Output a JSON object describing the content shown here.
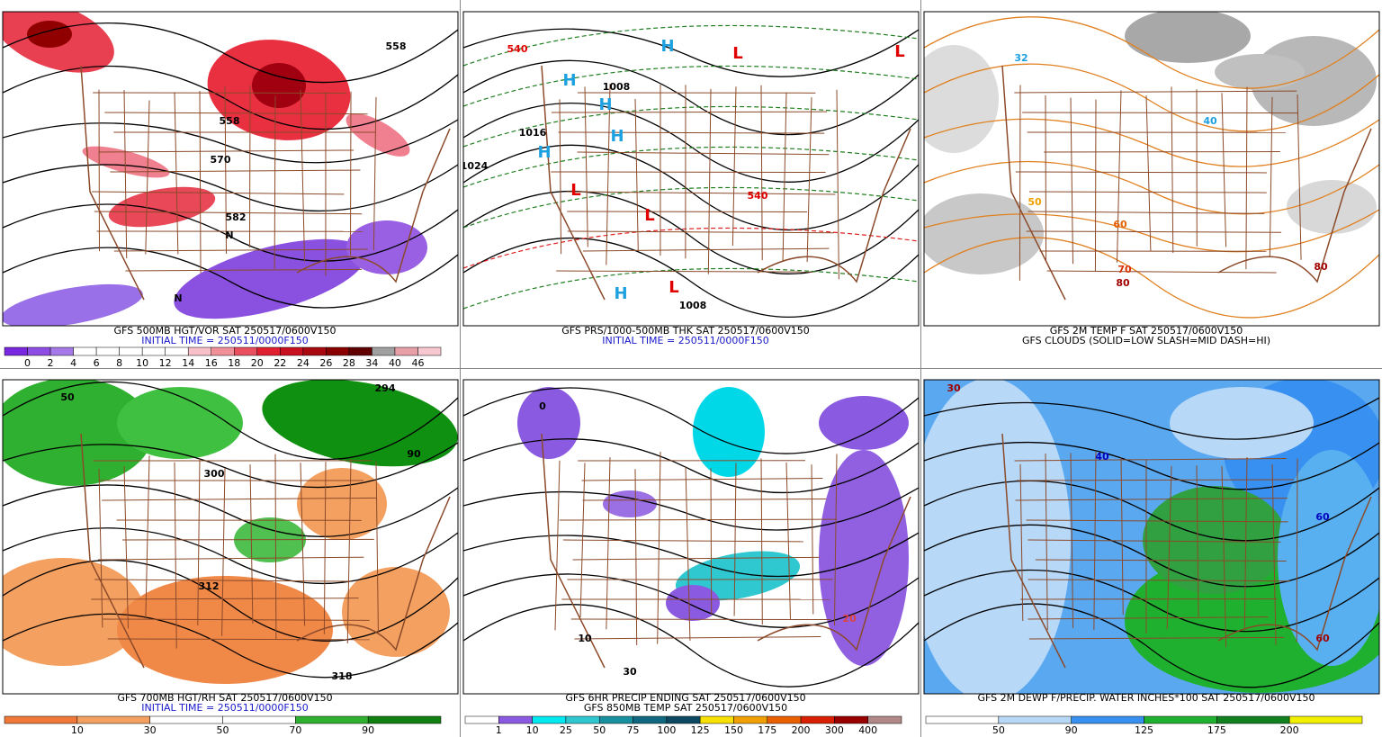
{
  "panels": [
    {
      "captions": [
        {
          "text": "GFS 500MB HGT/VOR SAT 250517/0600V150",
          "color": "#000000"
        },
        {
          "text": "INITIAL TIME = 250511/0000F150",
          "color": "#1a1acc"
        }
      ],
      "legend": {
        "labels": [
          "0",
          "2",
          "4",
          "6",
          "8",
          "10",
          "12",
          "14",
          "16",
          "18",
          "20",
          "22",
          "24",
          "26",
          "28",
          "34",
          "40",
          "46"
        ],
        "colors": [
          "#7a28e0",
          "#8e4ee4",
          "#a57ae8",
          "#ffffff",
          "#ffffff",
          "#ffffff",
          "#ffffff",
          "#ffffff",
          "#f8c0c8",
          "#f09098",
          "#e85060",
          "#e02030",
          "#c81020",
          "#a80810",
          "#880000",
          "#600000",
          "#a0a0a0",
          "#e8a0a8",
          "#f8c8d0"
        ]
      },
      "labels": [
        "558",
        "570",
        "582",
        "558",
        "N",
        "N"
      ]
    },
    {
      "captions": [
        {
          "text": "GFS PRS/1000-500MB THK SAT 250517/0600V150",
          "color": "#000000"
        },
        {
          "text": "INITIAL TIME = 250511/0000F150",
          "color": "#1a1acc"
        }
      ],
      "labels": [
        "H",
        "H",
        "H",
        "H",
        "H",
        "H",
        "L",
        "L",
        "L",
        "L",
        "L",
        "1024",
        "1016",
        "1008",
        "1008",
        "540",
        "540"
      ]
    },
    {
      "captions": [
        {
          "text": "GFS 2M TEMP F SAT 250517/0600V150",
          "color": "#000000"
        },
        {
          "text": "GFS CLOUDS (SOLID=LOW SLASH=MID DASH=HI)",
          "color": "#000000"
        }
      ],
      "labels": [
        "32",
        "40",
        "50",
        "60",
        "70",
        "80",
        "80"
      ]
    },
    {
      "captions": [
        {
          "text": "GFS 700MB HGT/RH SAT 250517/0600V150",
          "color": "#000000"
        },
        {
          "text": "INITIAL TIME = 250511/0000F150",
          "color": "#1a1acc"
        }
      ],
      "legend": {
        "labels": [
          "10",
          "30",
          "50",
          "70",
          "90"
        ],
        "colors": [
          "#f07838",
          "#f4a060",
          "#ffffff",
          "#ffffff",
          "#30b030",
          "#108010"
        ]
      },
      "labels": [
        "50",
        "90",
        "300",
        "312",
        "318",
        "294"
      ]
    },
    {
      "captions": [
        {
          "text": "GFS 6HR PRECIP ENDING SAT 250517/0600V150",
          "color": "#000000"
        },
        {
          "text": "GFS 850MB TEMP SAT 250517/0600V150",
          "color": "#000000"
        }
      ],
      "legend": {
        "labels": [
          "1",
          "10",
          "25",
          "50",
          "75",
          "100",
          "125",
          "150",
          "175",
          "200",
          "300",
          "400"
        ],
        "colors": [
          "#ffffff",
          "#8a5ae0",
          "#00e8f0",
          "#30c8d0",
          "#1890a0",
          "#106880",
          "#0c4860",
          "#f8e000",
          "#f0a000",
          "#e86000",
          "#d82000",
          "#980000",
          "#b08888"
        ]
      },
      "labels": [
        "0",
        "10",
        "20",
        "30"
      ]
    },
    {
      "captions": [
        {
          "text": "GFS 2M DEWP F/PRECIP. WATER INCHES*100 SAT 250517/0600V150",
          "color": "#000000"
        }
      ],
      "legend": {
        "labels": [
          "50",
          "90",
          "125",
          "175",
          "200"
        ],
        "colors": [
          "#ffffff",
          "#b8d8f8",
          "#3890f0",
          "#20b030",
          "#108020",
          "#f0f000"
        ]
      },
      "labels": [
        "30",
        "40",
        "60",
        "60"
      ]
    }
  ]
}
